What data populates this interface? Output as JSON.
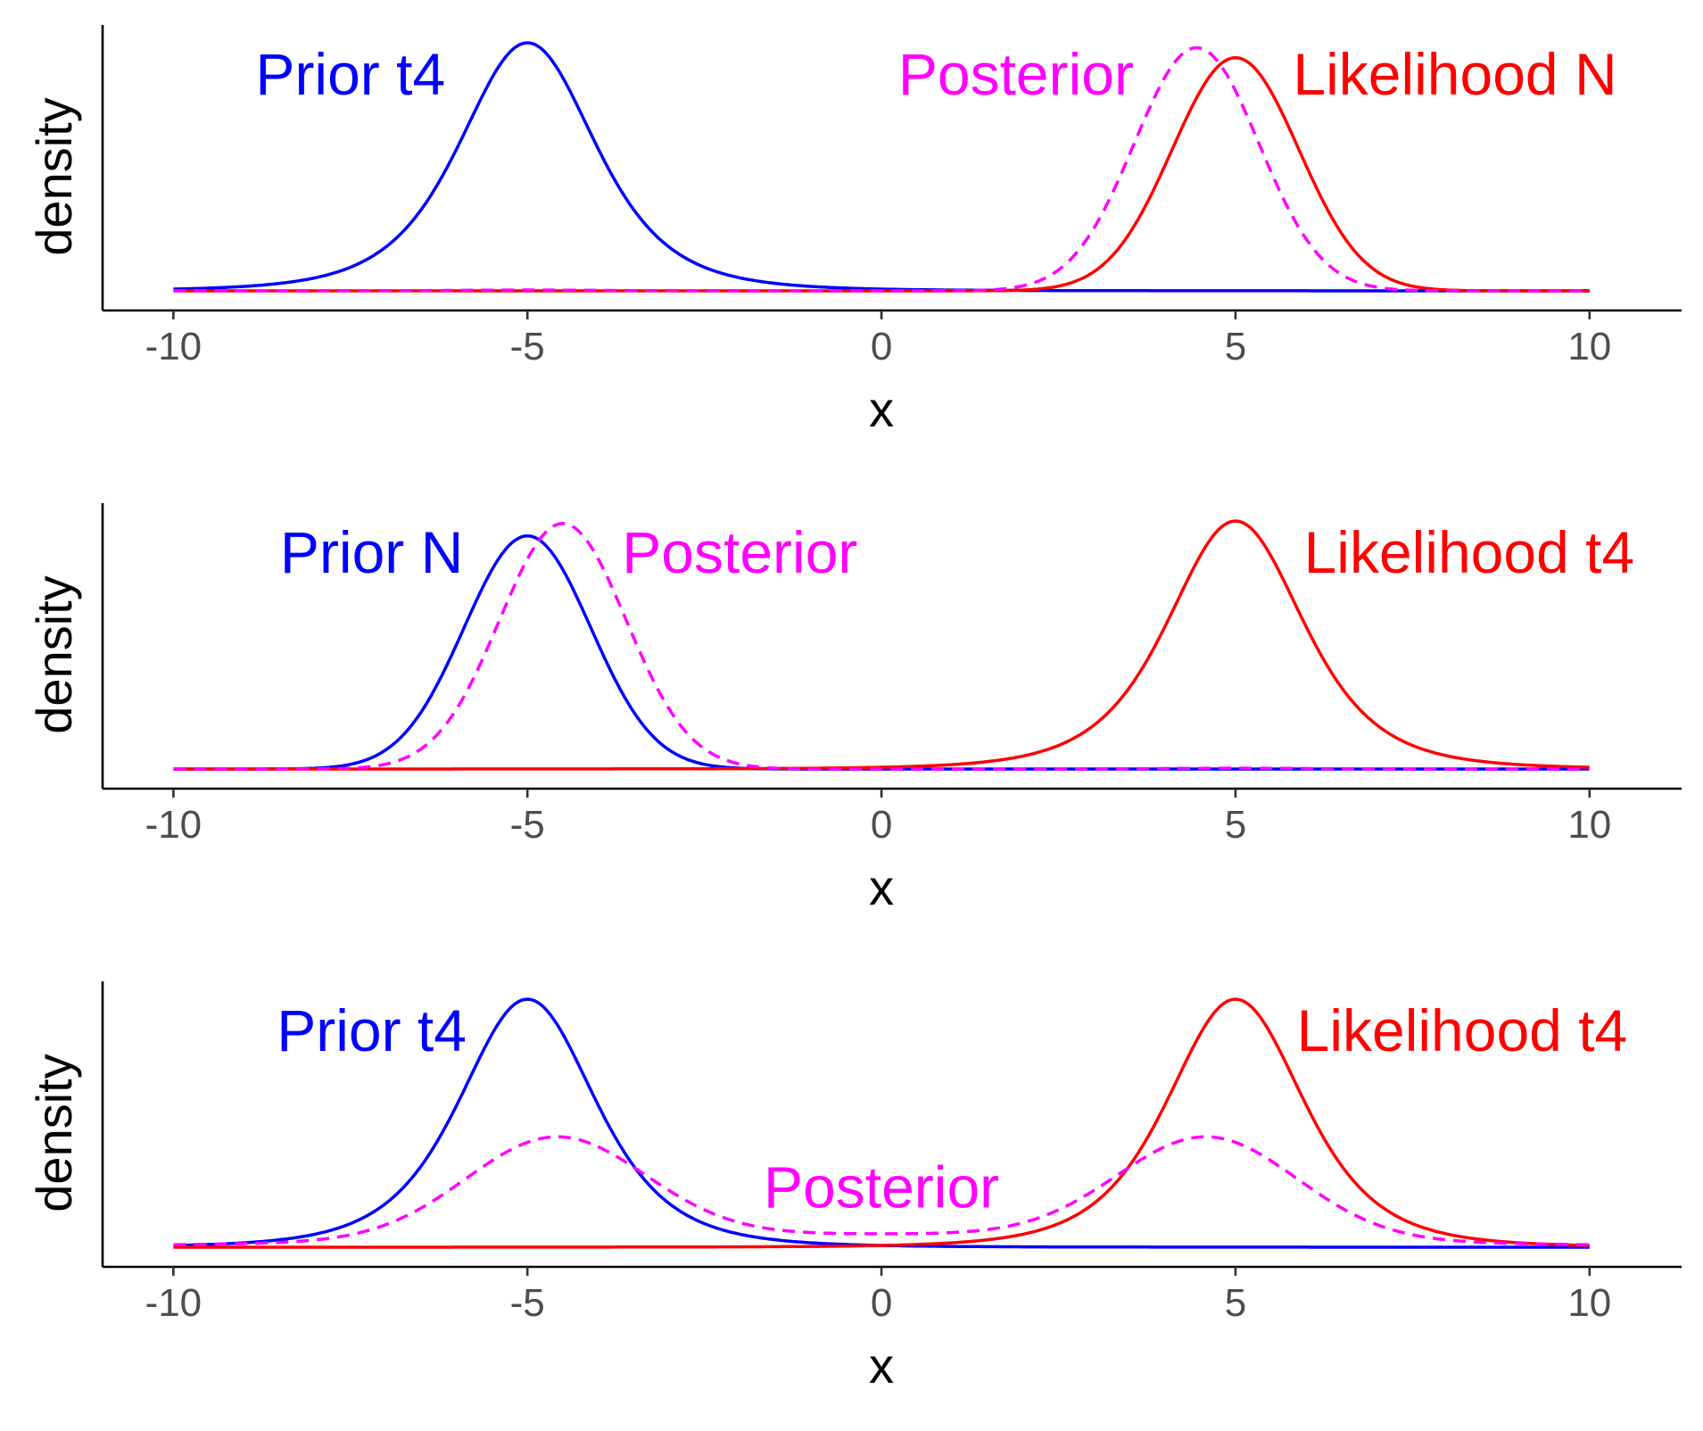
{
  "chart_data": [
    {
      "type": "line",
      "xlabel": "x",
      "ylabel": "density",
      "xlim": [
        -11,
        11.3
      ],
      "xticks": [
        -10,
        -5,
        0,
        5,
        10
      ],
      "xtick_labels": [
        "-10",
        "-5",
        "0",
        "5",
        "10"
      ],
      "y_ticks_shown": false,
      "grid": false,
      "legend": "none (curves labelled directly)",
      "series": [
        {
          "name": "Prior t4",
          "label": "Prior t4",
          "color": "#0000ff",
          "dash": "solid",
          "distribution": "t4",
          "location": -5,
          "x_range": [
            -10,
            10
          ],
          "peak": 1.0
        },
        {
          "name": "Likelihood N",
          "label": "Likelihood N",
          "color": "#ff0000",
          "dash": "solid",
          "distribution": "normal",
          "location": 5,
          "x_range": [
            -10,
            10
          ],
          "peak": 0.94
        },
        {
          "name": "Posterior",
          "label": "Posterior",
          "color": "#ff00ff",
          "dash": "dashed",
          "distribution": "posterior",
          "location": 4.4,
          "x_range": [
            -10,
            10
          ],
          "peak": 0.98
        }
      ],
      "labels": [
        {
          "text": "Prior t4",
          "x": -7.5,
          "y": 0.87,
          "color": "#0000ff"
        },
        {
          "text": "Posterior",
          "x": 1.9,
          "y": 0.87,
          "color": "#ff00ff"
        },
        {
          "text": "Likelihood N",
          "x": 8.1,
          "y": 0.87,
          "color": "#ff0000"
        }
      ]
    },
    {
      "type": "line",
      "xlabel": "x",
      "ylabel": "density",
      "xlim": [
        -11,
        11.3
      ],
      "xticks": [
        -10,
        -5,
        0,
        5,
        10
      ],
      "xtick_labels": [
        "-10",
        "-5",
        "0",
        "5",
        "10"
      ],
      "y_ticks_shown": false,
      "grid": false,
      "legend": "none (curves labelled directly)",
      "series": [
        {
          "name": "Prior N",
          "label": "Prior N",
          "color": "#0000ff",
          "dash": "solid",
          "distribution": "normal",
          "location": -5,
          "x_range": [
            -10,
            10
          ],
          "peak": 0.94
        },
        {
          "name": "Likelihood t4",
          "label": "Likelihood t4",
          "color": "#ff0000",
          "dash": "solid",
          "distribution": "t4",
          "location": 5,
          "x_range": [
            -10,
            10
          ],
          "peak": 1.0
        },
        {
          "name": "Posterior",
          "label": "Posterior",
          "color": "#ff00ff",
          "dash": "dashed",
          "distribution": "posterior",
          "location": -4.5,
          "x_range": [
            -10,
            10
          ],
          "peak": 0.99
        }
      ],
      "labels": [
        {
          "text": "Prior N",
          "x": -7.2,
          "y": 0.87,
          "color": "#0000ff"
        },
        {
          "text": "Posterior",
          "x": -2.0,
          "y": 0.87,
          "color": "#ff00ff"
        },
        {
          "text": "Likelihood t4",
          "x": 8.3,
          "y": 0.87,
          "color": "#ff0000"
        }
      ]
    },
    {
      "type": "line",
      "xlabel": "x",
      "ylabel": "density",
      "xlim": [
        -11,
        11.3
      ],
      "xticks": [
        -10,
        -5,
        0,
        5,
        10
      ],
      "xtick_labels": [
        "-10",
        "-5",
        "0",
        "5",
        "10"
      ],
      "y_ticks_shown": false,
      "grid": false,
      "legend": "none (curves labelled directly)",
      "series": [
        {
          "name": "Prior t4",
          "label": "Prior t4",
          "color": "#0000ff",
          "dash": "solid",
          "distribution": "t4",
          "location": -5,
          "x_range": [
            -10,
            10
          ],
          "peak": 1.0
        },
        {
          "name": "Likelihood t4",
          "label": "Likelihood t4",
          "color": "#ff0000",
          "dash": "solid",
          "distribution": "t4",
          "location": 5,
          "x_range": [
            -10,
            10
          ],
          "peak": 1.0
        },
        {
          "name": "Posterior",
          "label": "Posterior",
          "color": "#ff00ff",
          "dash": "dashed",
          "distribution": "posterior",
          "modes": [
            -4.6,
            4.6
          ],
          "x_range": [
            -10,
            10
          ],
          "peak": 0.42
        }
      ],
      "labels": [
        {
          "text": "Prior t4",
          "x": -7.2,
          "y": 0.87,
          "color": "#0000ff"
        },
        {
          "text": "Likelihood t4",
          "x": 8.2,
          "y": 0.87,
          "color": "#ff0000"
        },
        {
          "text": "Posterior",
          "x": 0.0,
          "y": 0.24,
          "color": "#ff00ff"
        }
      ]
    }
  ]
}
